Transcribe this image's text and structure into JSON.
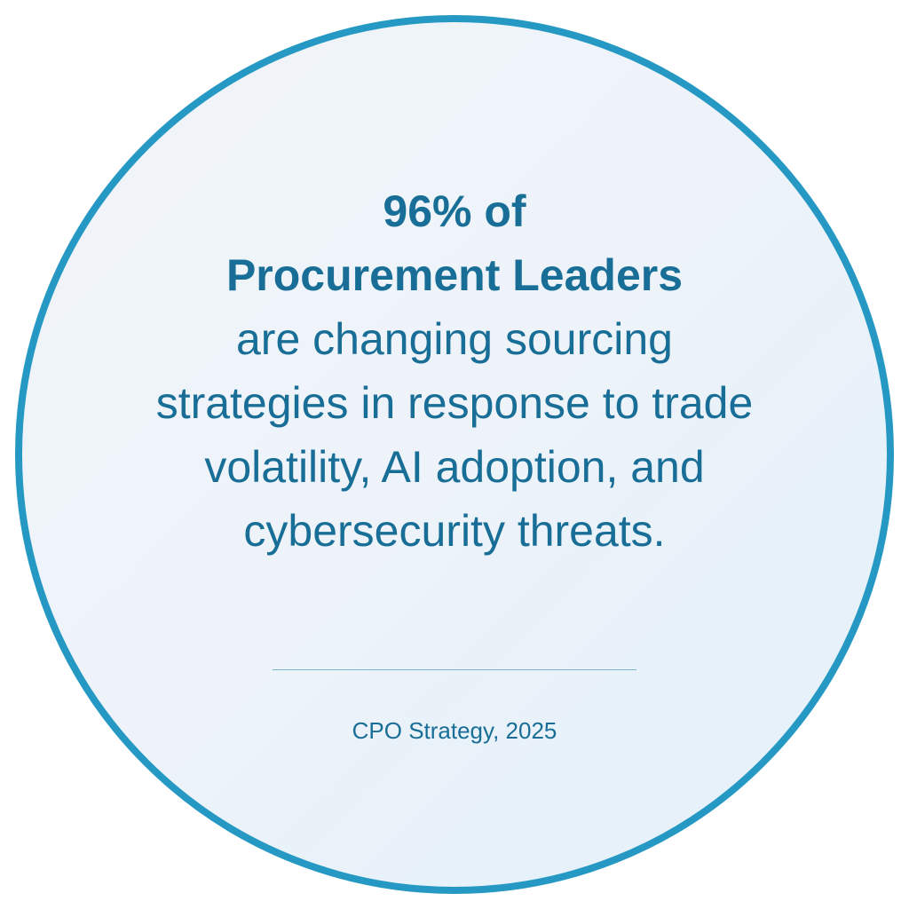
{
  "headline": {
    "line1": "96% of",
    "line2": "Procurement Leaders"
  },
  "body": [
    "are changing sourcing",
    "strategies in response to trade",
    "volatility, AI adoption, and",
    "cybersecurity threats."
  ],
  "citation": "CPO Strategy, 2025",
  "colors": {
    "border": "#2599c3",
    "text": "#186e96",
    "background": "#edf3f9"
  }
}
